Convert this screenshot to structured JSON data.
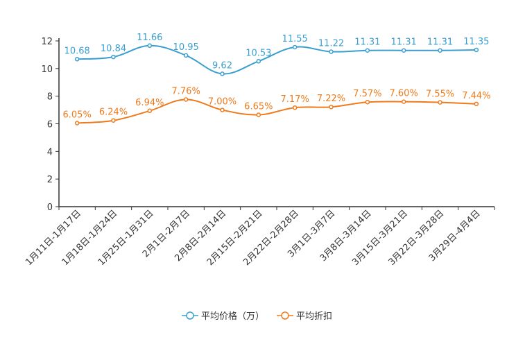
{
  "chart_data": {
    "type": "line",
    "categories": [
      "1月11日-1月17日",
      "1月18日-1月24日",
      "1月25日-1月31日",
      "2月1日-2月7日",
      "2月8日-2月14日",
      "2月15日-2月21日",
      "2月22日-2月28日",
      "3月1日-3月7日",
      "3月8日-3月14日",
      "3月15日-3月21日",
      "3月22日-3月28日",
      "3月29日-4月4日"
    ],
    "y_ticks": [
      "0",
      "2",
      "4",
      "6",
      "8",
      "10",
      "12"
    ],
    "ylim": [
      0,
      12
    ],
    "smooth": true,
    "series": [
      {
        "name": "平均价格（万）",
        "color": "#3a9fd0",
        "values": [
          10.68,
          10.84,
          11.66,
          10.95,
          9.62,
          10.53,
          11.55,
          11.22,
          11.31,
          11.31,
          11.31,
          11.35
        ],
        "labels": [
          "10.68",
          "10.84",
          "11.66",
          "10.95",
          "9.62",
          "10.53",
          "11.55",
          "11.22",
          "11.31",
          "11.31",
          "11.31",
          "11.35"
        ]
      },
      {
        "name": "平均折扣",
        "color": "#f07a1a",
        "values": [
          6.05,
          6.24,
          6.94,
          7.76,
          7.0,
          6.65,
          7.17,
          7.22,
          7.57,
          7.6,
          7.55,
          7.44
        ],
        "labels": [
          "6.05%",
          "6.24%",
          "6.94%",
          "7.76%",
          "7.00%",
          "6.65%",
          "7.17%",
          "7.22%",
          "7.57%",
          "7.60%",
          "7.55%",
          "7.44%"
        ]
      }
    ],
    "legend_position": "bottom-center"
  }
}
